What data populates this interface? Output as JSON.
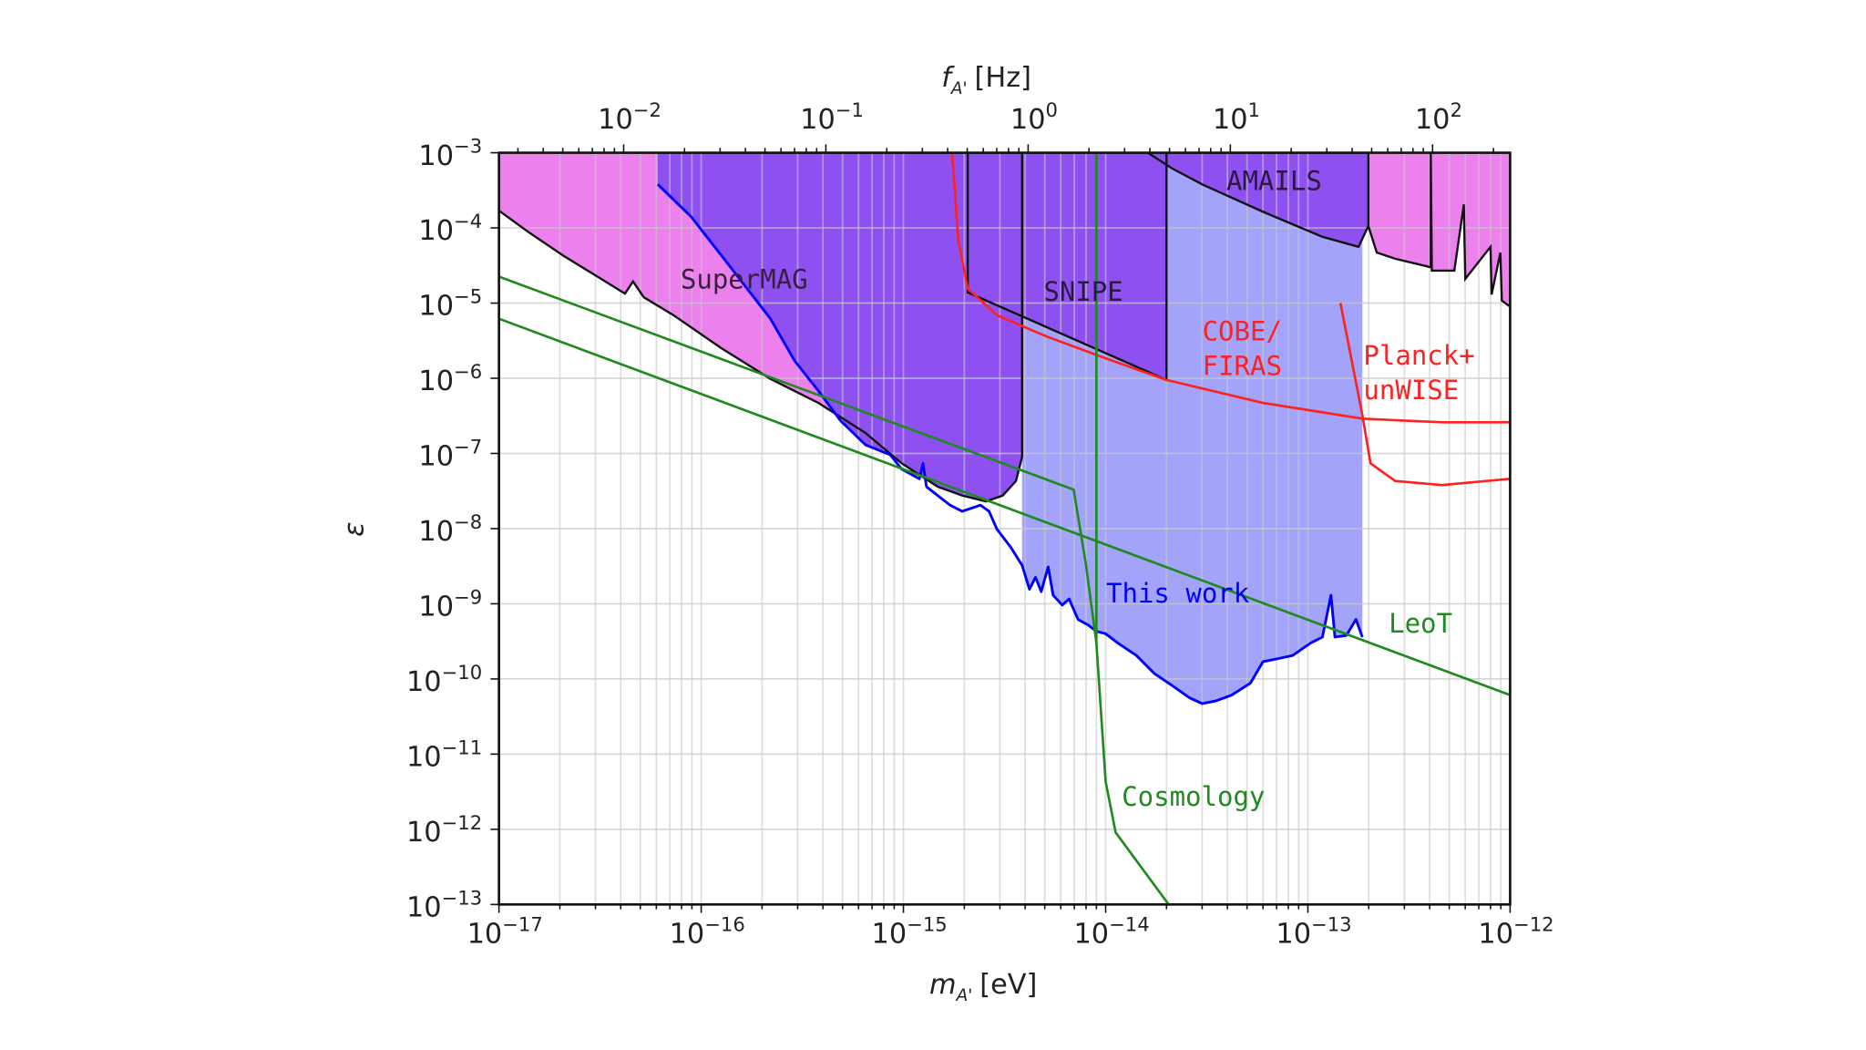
{
  "chart_data": {
    "type": "area",
    "title": "",
    "xlabel": {
      "symbol": "m",
      "subscript": "A'",
      "unit": "[eV]"
    },
    "ylabel": "ε",
    "x2label": {
      "symbol": "f",
      "subscript": "A'",
      "unit": "[Hz]"
    },
    "xscale": "log",
    "yscale": "log",
    "xlim": [
      1e-17,
      1e-12
    ],
    "ylim": [
      1e-13,
      0.001
    ],
    "grid": true,
    "x_ticks": [
      {
        "value": 1e-17,
        "base": "10",
        "exp": "−17"
      },
      {
        "value": 1e-16,
        "base": "10",
        "exp": "−16"
      },
      {
        "value": 1e-15,
        "base": "10",
        "exp": "−15"
      },
      {
        "value": 1e-14,
        "base": "10",
        "exp": "−14"
      },
      {
        "value": 1e-13,
        "base": "10",
        "exp": "−13"
      },
      {
        "value": 1e-12,
        "base": "10",
        "exp": "−12"
      }
    ],
    "x2_ticks": [
      {
        "value": 0.01,
        "base": "10",
        "exp": "−2"
      },
      {
        "value": 0.1,
        "base": "10",
        "exp": "−1"
      },
      {
        "value": 1,
        "base": "10",
        "exp": "0"
      },
      {
        "value": 10,
        "base": "10",
        "exp": "1"
      },
      {
        "value": 100,
        "base": "10",
        "exp": "2"
      }
    ],
    "x2_conversion_eV_per_Hz": 4.1357e-15,
    "y_ticks": [
      {
        "value": 0.001,
        "base": "10",
        "exp": "−3"
      },
      {
        "value": 0.0001,
        "base": "10",
        "exp": "−4"
      },
      {
        "value": 1e-05,
        "base": "10",
        "exp": "−5"
      },
      {
        "value": 1e-06,
        "base": "10",
        "exp": "−6"
      },
      {
        "value": 1e-07,
        "base": "10",
        "exp": "−7"
      },
      {
        "value": 1e-08,
        "base": "10",
        "exp": "−8"
      },
      {
        "value": 1e-09,
        "base": "10",
        "exp": "−9"
      },
      {
        "value": 1e-10,
        "base": "10",
        "exp": "−10"
      },
      {
        "value": 1e-11,
        "base": "10",
        "exp": "−11"
      },
      {
        "value": 1e-12,
        "base": "10",
        "exp": "−12"
      },
      {
        "value": 1e-13,
        "base": "10",
        "exp": "−13"
      }
    ],
    "colors": {
      "pink": "#ec80ec",
      "purple": "#8f50f2",
      "light_blue": "#a3a3fa",
      "blue": "#0000ff",
      "red": "#ff2020",
      "green": "#1f8a1f",
      "black": "#111111"
    },
    "regions": {
      "supermag_low": [
        [
          1e-17,
          0.00017
        ],
        [
          1.4e-17,
          8.8e-05
        ],
        [
          2.1e-17,
          4.2e-05
        ],
        [
          3.2e-17,
          2.1e-05
        ],
        [
          4.2e-17,
          1.34e-05
        ],
        [
          4.6e-17,
          1.94e-05
        ],
        [
          5.2e-17,
          1.2e-05
        ],
        [
          7.3e-17,
          6.9e-06
        ],
        [
          1.26e-16,
          2.5e-06
        ],
        [
          2.2e-16,
          9.8e-07
        ],
        [
          3.8e-16,
          4.7e-07
        ],
        [
          6.5e-16,
          1.87e-07
        ],
        [
          9.8e-16,
          7.4e-08
        ],
        [
          1.48e-15,
          3.6e-08
        ],
        [
          1.95e-15,
          2.75e-08
        ],
        [
          2.56e-15,
          2.3e-08
        ],
        [
          3.1e-15,
          2.75e-08
        ],
        [
          3.6e-15,
          4.3e-08
        ],
        [
          3.86e-15,
          9e-08
        ],
        [
          3.86e-15,
          0.001
        ]
      ],
      "supermag_high": [
        [
          6.1e-17,
          0.00038
        ],
        [
          8.9e-17,
          0.000142
        ],
        [
          1.44e-16,
          2.7e-05
        ],
        [
          2.2e-16,
          6.2e-06
        ],
        [
          2.9e-16,
          1.7e-06
        ],
        [
          3.8e-16,
          6.8e-07
        ],
        [
          4.9e-16,
          2.7e-07
        ],
        [
          6.5e-16,
          1.3e-07
        ],
        [
          8.6e-16,
          9.6e-08
        ],
        [
          9.8e-16,
          7.4e-08
        ],
        [
          1.48e-15,
          3.6e-08
        ],
        [
          1.95e-15,
          2.75e-08
        ],
        [
          2.56e-15,
          2.3e-08
        ],
        [
          3.1e-15,
          2.75e-08
        ],
        [
          3.6e-15,
          4.3e-08
        ],
        [
          3.86e-15,
          9e-08
        ],
        [
          3.86e-15,
          0.001
        ]
      ],
      "snipe": [
        [
          2.08e-15,
          0.001
        ],
        [
          2.08e-15,
          1.39e-05
        ],
        [
          2e-14,
          9.5e-07
        ],
        [
          2e-14,
          0.001
        ]
      ],
      "amails": [
        [
          1.62e-14,
          0.001
        ],
        [
          2.13e-14,
          0.00062
        ],
        [
          3e-14,
          0.00038
        ],
        [
          6e-14,
          0.000164
        ],
        [
          1.18e-13,
          7.6e-05
        ],
        [
          1.78e-13,
          5.6e-05
        ],
        [
          1.99e-13,
          0.000106
        ],
        [
          1.99e-13,
          0.001
        ]
      ],
      "high_mass": [
        [
          1.99e-13,
          0.001
        ],
        [
          1.99e-13,
          0.000106
        ],
        [
          2.19e-13,
          4.7e-05
        ],
        [
          2.7e-13,
          3.9e-05
        ],
        [
          4.05e-13,
          3e-05
        ],
        [
          4.05e-13,
          0.001
        ],
        [
          4.1e-13,
          2.7e-05
        ],
        [
          5.3e-13,
          2.7e-05
        ],
        [
          5.9e-13,
          0.000205
        ],
        [
          6e-13,
          2.1e-05
        ],
        [
          8e-13,
          5.6e-05
        ],
        [
          8.1e-13,
          1.3e-05
        ],
        [
          8.95e-13,
          4.7e-05
        ],
        [
          9.1e-13,
          1.08e-05
        ],
        [
          1e-12,
          9e-06
        ]
      ]
    },
    "series": [
      {
        "name": "This work",
        "color": "#0000ff",
        "points": [
          [
            6.1e-17,
            0.00038
          ],
          [
            8.9e-17,
            0.000142
          ],
          [
            1.44e-16,
            2.7e-05
          ],
          [
            2.2e-16,
            6.2e-06
          ],
          [
            2.9e-16,
            1.7e-06
          ],
          [
            3.8e-16,
            6.8e-07
          ],
          [
            4.9e-16,
            2.7e-07
          ],
          [
            6.5e-16,
            1.3e-07
          ],
          [
            8.6e-16,
            9.6e-08
          ],
          [
            9.8e-16,
            6.2e-08
          ],
          [
            1.2e-15,
            4.6e-08
          ],
          [
            1.25e-15,
            7.4e-08
          ],
          [
            1.3e-15,
            3.6e-08
          ],
          [
            1.7e-15,
            2.05e-08
          ],
          [
            1.95e-15,
            1.7e-08
          ],
          [
            2.4e-15,
            2.05e-08
          ],
          [
            2.65e-15,
            1.7e-08
          ],
          [
            2.9e-15,
            9.8e-09
          ],
          [
            3.4e-15,
            5.6e-09
          ],
          [
            3.86e-15,
            3.25e-09
          ],
          [
            4.2e-15,
            1.56e-09
          ],
          [
            4.5e-15,
            2.25e-09
          ],
          [
            4.8e-15,
            1.45e-09
          ],
          [
            5.2e-15,
            3.1e-09
          ],
          [
            5.5e-15,
            1.3e-09
          ],
          [
            6.1e-15,
            9.6e-10
          ],
          [
            6.6e-15,
            1.16e-09
          ],
          [
            7.3e-15,
            6.2e-10
          ],
          [
            8.2e-15,
            5.2e-10
          ],
          [
            9e-15,
            4.3e-10
          ],
          [
            1e-14,
            4e-10
          ],
          [
            1.15e-14,
            3e-10
          ],
          [
            1.42e-14,
            2.05e-10
          ],
          [
            1.74e-14,
            1.18e-10
          ],
          [
            2.13e-14,
            8.2e-11
          ],
          [
            2.6e-14,
            5.6e-11
          ],
          [
            3e-14,
            4.7e-11
          ],
          [
            3.5e-14,
            5.1e-11
          ],
          [
            4.2e-14,
            6.1e-11
          ],
          [
            5.2e-14,
            8.8e-11
          ],
          [
            6e-14,
            1.7e-10
          ],
          [
            7e-14,
            1.84e-10
          ],
          [
            8.4e-14,
            2.05e-10
          ],
          [
            1.03e-13,
            3e-10
          ],
          [
            1.18e-13,
            3.6e-10
          ],
          [
            1.3e-13,
            1.3e-09
          ],
          [
            1.36e-13,
            3.6e-10
          ],
          [
            1.55e-13,
            3.8e-10
          ],
          [
            1.73e-13,
            6.2e-10
          ],
          [
            1.86e-13,
            3.6e-10
          ]
        ]
      },
      {
        "name": "COBE/FIRAS",
        "color": "#ff2020",
        "points": [
          [
            1.74e-15,
            0.001
          ],
          [
            1.87e-15,
            6.8e-05
          ],
          [
            2.08e-15,
            1.56e-05
          ],
          [
            2.9e-15,
            6.9e-06
          ],
          [
            5.1e-15,
            3.6e-06
          ],
          [
            1e-14,
            1.84e-06
          ],
          [
            2e-14,
            9.5e-07
          ],
          [
            6e-14,
            4.7e-07
          ],
          [
            1.86e-13,
            2.9e-07
          ],
          [
            4.6e-13,
            2.6e-07
          ],
          [
            1e-12,
            2.6e-07
          ]
        ]
      },
      {
        "name": "Planck+unWISE",
        "color": "#ff2020",
        "points": [
          [
            1.45e-13,
            1e-05
          ],
          [
            1.86e-13,
            3.25e-07
          ],
          [
            2.04e-13,
            7.4e-08
          ],
          [
            2.7e-13,
            4.3e-08
          ],
          [
            4.6e-13,
            3.8e-08
          ],
          [
            1e-12,
            4.6e-08
          ]
        ]
      },
      {
        "name": "LeoT",
        "color": "#1f8a1f",
        "points": [
          [
            1e-17,
            6.2e-06
          ],
          [
            1e-12,
            6.1e-11
          ]
        ]
      },
      {
        "name": "Cosmology",
        "color": "#1f8a1f",
        "points": [
          [
            1e-17,
            2.25e-05
          ],
          [
            6.95e-15,
            3.3e-08
          ],
          [
            8e-15,
            3.25e-09
          ],
          [
            9e-15,
            3e-10
          ],
          [
            1e-14,
            4.3e-12
          ],
          [
            1.12e-14,
            9.1e-13
          ],
          [
            2.05e-14,
            1e-13
          ]
        ]
      },
      {
        "name": "Cosmology-vertical",
        "color": "#1f8a1f",
        "points": [
          [
            9e-15,
            0.001
          ],
          [
            9e-15,
            3e-10
          ]
        ]
      }
    ],
    "annotations": {
      "supermag": "SuperMAG",
      "snipe": "SNIPE",
      "amails": "AMAILS",
      "cobe_line1": "COBE/",
      "cobe_line2": "FIRAS",
      "planck_line1": "Planck+",
      "planck_line2": "unWISE",
      "this_work": "This work",
      "leot": "LeoT",
      "cosmology": "Cosmology"
    }
  }
}
